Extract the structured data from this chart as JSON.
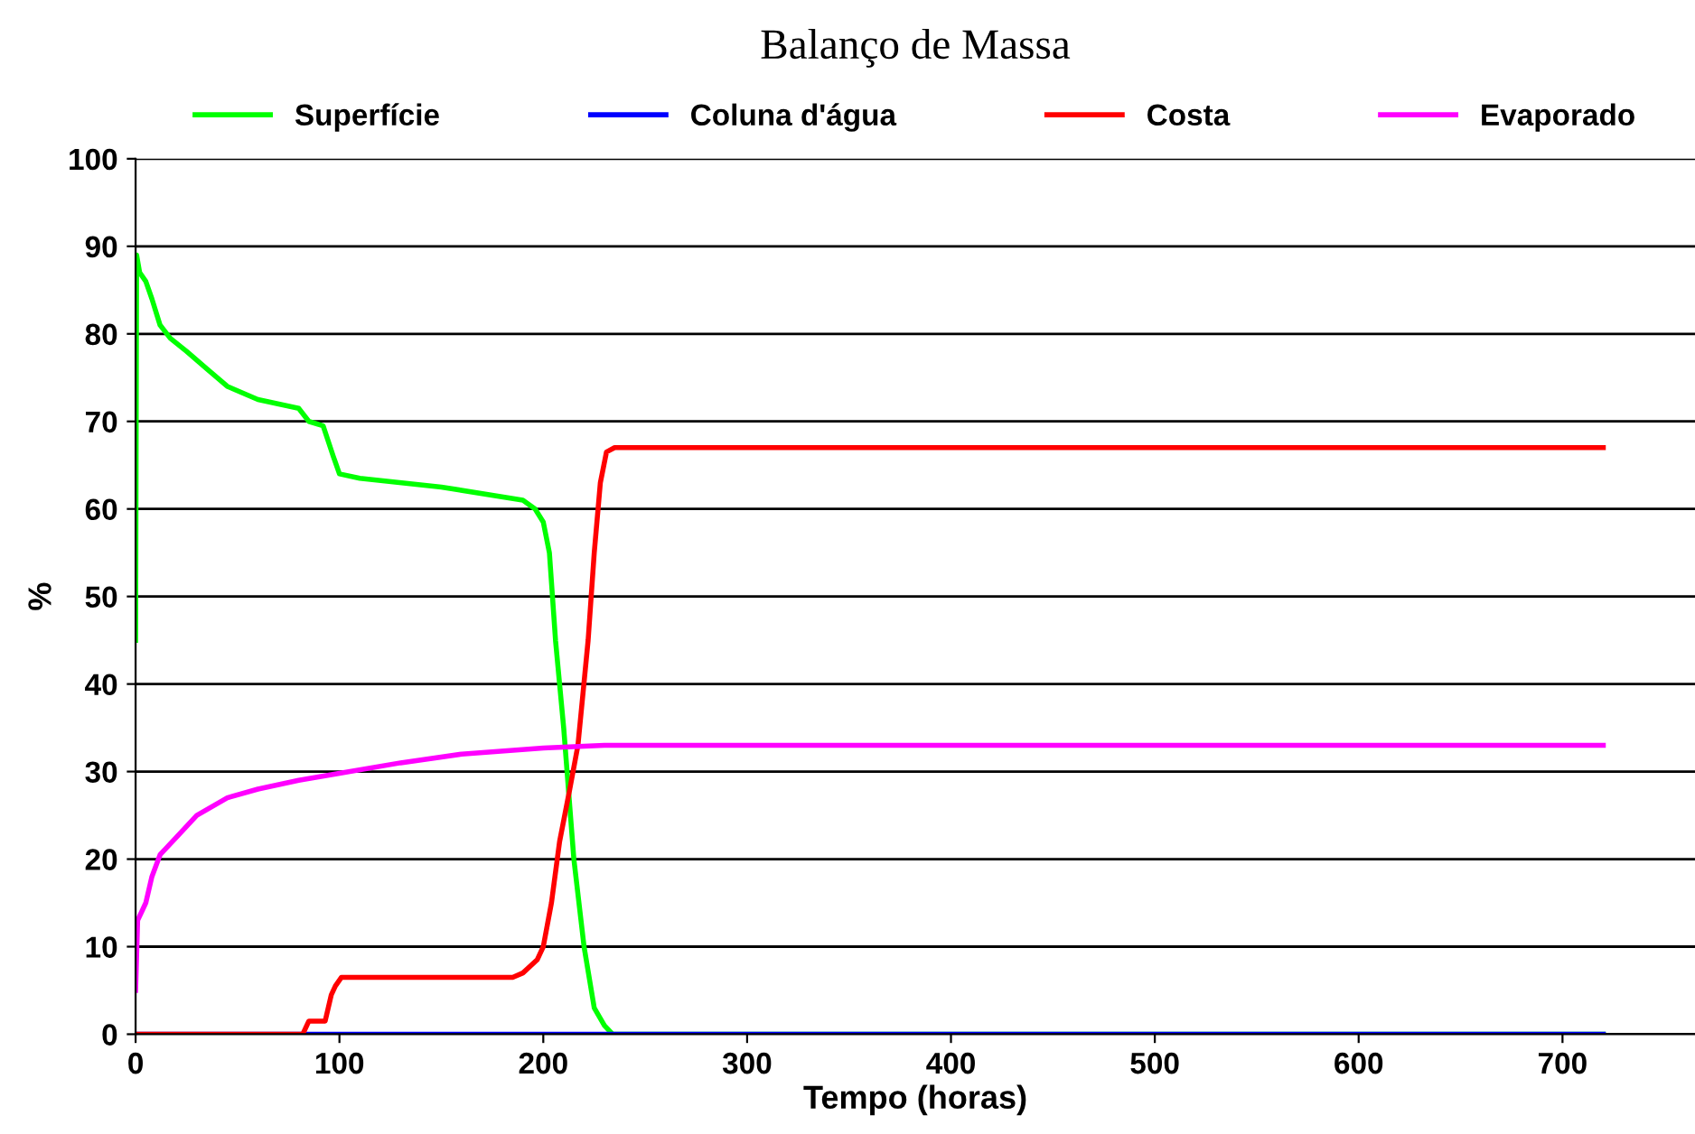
{
  "chart_data": {
    "type": "line",
    "title": "Balanço de Massa",
    "xlabel": "Tempo (horas)",
    "ylabel": "%",
    "xlim": [
      0,
      765
    ],
    "ylim": [
      0,
      100
    ],
    "xticks": [
      0,
      100,
      200,
      300,
      400,
      500,
      600,
      700
    ],
    "yticks": [
      0,
      10,
      20,
      30,
      40,
      50,
      60,
      70,
      80,
      90,
      100
    ],
    "grid": "y",
    "legend": "top",
    "marker": "none",
    "line_style": "solid",
    "series": [
      {
        "name": "Superfície",
        "color": "#00ff00",
        "x": [
          0,
          0.5,
          2,
          5,
          8,
          12,
          17,
          25,
          35,
          45,
          60,
          80,
          85,
          92,
          97,
          100,
          110,
          150,
          190,
          196,
          200,
          203,
          206,
          210,
          215,
          220,
          225,
          230,
          234,
          720
        ],
        "values": [
          45,
          89,
          87,
          86,
          84,
          81,
          79.5,
          78,
          76,
          74,
          72.5,
          71.5,
          70,
          69.5,
          66,
          64,
          63.5,
          62.5,
          61,
          60,
          58.5,
          55,
          45,
          35,
          20,
          10,
          3,
          1,
          0,
          0
        ]
      },
      {
        "name": "Coluna d'água",
        "color": "#0000ff",
        "x": [
          0,
          720
        ],
        "values": [
          0,
          0
        ]
      },
      {
        "name": "Costa",
        "color": "#ff0000",
        "x": [
          0,
          82,
          85,
          93,
          96,
          98,
          101,
          185,
          190,
          197,
          200,
          204,
          208,
          213,
          217,
          222,
          225,
          228,
          231,
          235,
          720
        ],
        "values": [
          0,
          0,
          1.5,
          1.5,
          4.5,
          5.5,
          6.5,
          6.5,
          7,
          8.5,
          10,
          15,
          22,
          28,
          33,
          45,
          55,
          63,
          66.5,
          67,
          67
        ]
      },
      {
        "name": "Evaporado",
        "color": "#ff00ff",
        "x": [
          0,
          1,
          3,
          5,
          8,
          12,
          20,
          30,
          45,
          60,
          80,
          100,
          130,
          160,
          200,
          230,
          720
        ],
        "values": [
          5,
          13,
          14,
          15,
          18,
          20.5,
          22.5,
          25,
          27,
          28,
          29,
          29.8,
          31,
          32,
          32.7,
          33,
          33
        ]
      }
    ]
  }
}
